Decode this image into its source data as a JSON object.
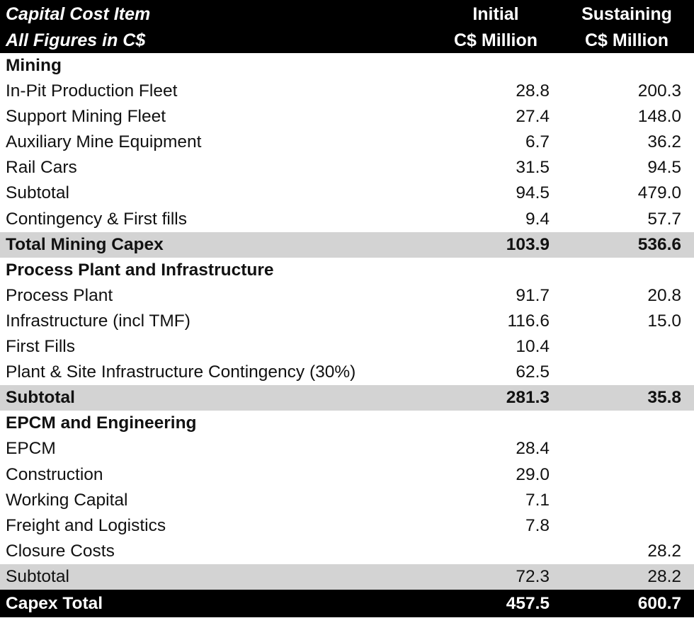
{
  "header": {
    "item_line1": "Capital Cost Item",
    "item_line2": "All Figures in C$",
    "initial_line1": "Initial",
    "initial_line2": "C$ Million",
    "sustaining_line1": "Sustaining",
    "sustaining_line2": "C$ Million"
  },
  "rows": [
    {
      "label": "Mining",
      "initial": "",
      "sustaining": "",
      "type": "section"
    },
    {
      "label": "In-Pit Production Fleet",
      "initial": "28.8",
      "sustaining": "200.3",
      "type": "item"
    },
    {
      "label": "Support Mining Fleet",
      "initial": "27.4",
      "sustaining": "148.0",
      "type": "item"
    },
    {
      "label": "Auxiliary Mine Equipment",
      "initial": "6.7",
      "sustaining": "36.2",
      "type": "item"
    },
    {
      "label": "Rail Cars",
      "initial": "31.5",
      "sustaining": "94.5",
      "type": "item"
    },
    {
      "label": "Subtotal",
      "initial": "94.5",
      "sustaining": "479.0",
      "type": "item"
    },
    {
      "label": "Contingency & First fills",
      "initial": "9.4",
      "sustaining": "57.7",
      "type": "item"
    },
    {
      "label": "Total Mining Capex",
      "initial": "103.9",
      "sustaining": "536.6",
      "type": "total"
    },
    {
      "label": "Process Plant and Infrastructure",
      "initial": "",
      "sustaining": "",
      "type": "section"
    },
    {
      "label": "Process Plant",
      "initial": "91.7",
      "sustaining": "20.8",
      "type": "item"
    },
    {
      "label": "Infrastructure (incl TMF)",
      "initial": "116.6",
      "sustaining": "15.0",
      "type": "item"
    },
    {
      "label": "First Fills",
      "initial": "10.4",
      "sustaining": "",
      "type": "item"
    },
    {
      "label": "Plant & Site Infrastructure Contingency (30%)",
      "initial": "62.5",
      "sustaining": "",
      "type": "item"
    },
    {
      "label": "Subtotal",
      "initial": "281.3",
      "sustaining": "35.8",
      "type": "total"
    },
    {
      "label": "EPCM and Engineering",
      "initial": "",
      "sustaining": "",
      "type": "section"
    },
    {
      "label": "EPCM",
      "initial": "28.4",
      "sustaining": "",
      "type": "item"
    },
    {
      "label": "Construction",
      "initial": "29.0",
      "sustaining": "",
      "type": "item"
    },
    {
      "label": "Working Capital",
      "initial": "7.1",
      "sustaining": "",
      "type": "item"
    },
    {
      "label": "Freight and Logistics",
      "initial": "7.8",
      "sustaining": "",
      "type": "item"
    },
    {
      "label": "Closure Costs",
      "initial": "",
      "sustaining": "28.2",
      "type": "item"
    },
    {
      "label": "Subtotal",
      "initial": "72.3",
      "sustaining": "28.2",
      "type": "subtotal"
    }
  ],
  "grand_total": {
    "label": "Capex Total",
    "initial": "457.5",
    "sustaining": "600.7"
  }
}
